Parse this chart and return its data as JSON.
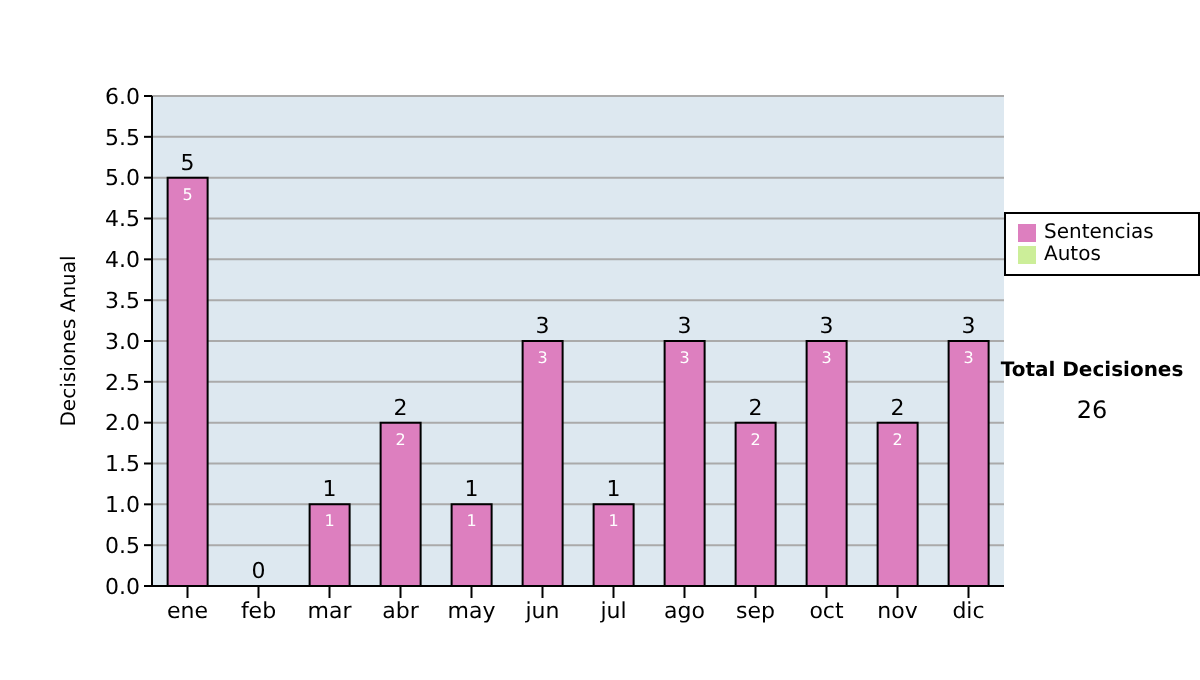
{
  "chart_data": {
    "type": "bar",
    "ylabel": "Decisiones Anual",
    "categories": [
      "ene",
      "feb",
      "mar",
      "abr",
      "may",
      "jun",
      "jul",
      "ago",
      "sep",
      "oct",
      "nov",
      "dic"
    ],
    "series": [
      {
        "name": "Sentencias",
        "color": "#dd7fbf",
        "values": [
          5,
          0,
          1,
          2,
          1,
          3,
          1,
          3,
          2,
          3,
          2,
          3
        ],
        "value_labels": [
          "5",
          null,
          "1",
          "2",
          "1",
          "3",
          "1",
          "3",
          "2",
          "3",
          "2",
          "3"
        ]
      },
      {
        "name": "Autos",
        "color": "#ccee99",
        "values": [
          0,
          0,
          0,
          0,
          0,
          0,
          0,
          0,
          0,
          0,
          0,
          0
        ]
      }
    ],
    "stacked": true,
    "totals": [
      "5",
      "0",
      "1",
      "2",
      "1",
      "3",
      "1",
      "3",
      "2",
      "3",
      "2",
      "3"
    ],
    "ylim": [
      0,
      6
    ],
    "yticks": [
      {
        "value": 0,
        "label": "0.0"
      },
      {
        "value": 0.5,
        "label": "0.5"
      },
      {
        "value": 1,
        "label": "1.0"
      },
      {
        "value": 1.5,
        "label": "1.5"
      },
      {
        "value": 2,
        "label": "2.0"
      },
      {
        "value": 2.5,
        "label": "2.5"
      },
      {
        "value": 3,
        "label": "3.0"
      },
      {
        "value": 3.5,
        "label": "3.5"
      },
      {
        "value": 4,
        "label": "4.0"
      },
      {
        "value": 4.5,
        "label": "4.5"
      },
      {
        "value": 5,
        "label": "5.0"
      },
      {
        "value": 5.5,
        "label": "5.5"
      },
      {
        "value": 6,
        "label": "6.0"
      }
    ],
    "grid": "y",
    "legend": "right",
    "annotations": [
      "Total Decisiones",
      "26"
    ]
  }
}
